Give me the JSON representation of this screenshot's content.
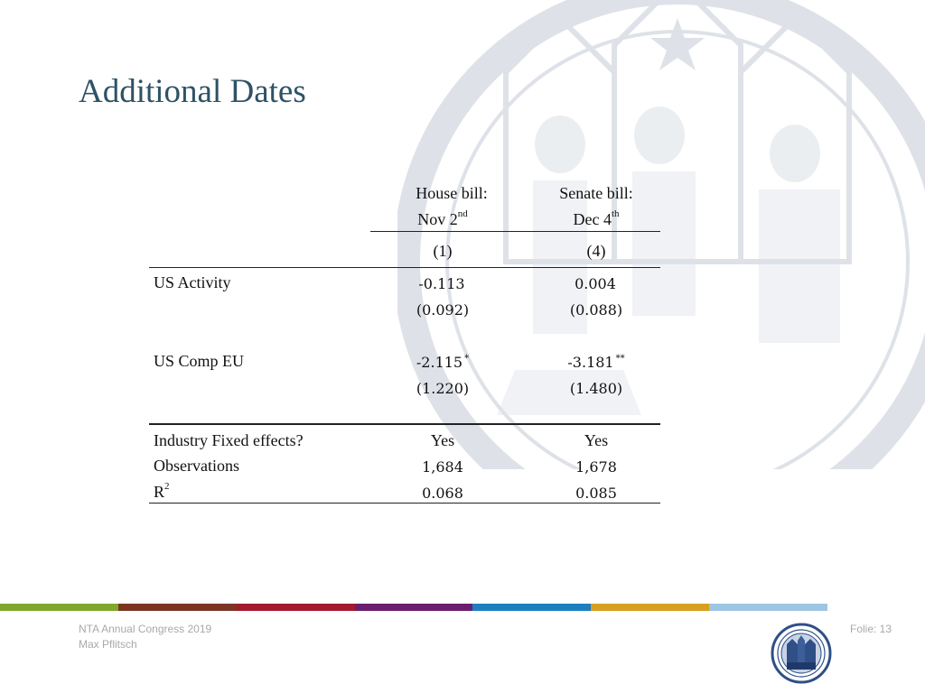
{
  "slide": {
    "title": "Additional Dates"
  },
  "table": {
    "columns": [
      {
        "line1": "House bill:",
        "line2_base": "Nov 2",
        "line2_sup": "nd",
        "number": "(1)"
      },
      {
        "line1": "Senate bill:",
        "line2_base": "Dec 4",
        "line2_sup": "th",
        "number": "(4)"
      }
    ],
    "rows": [
      {
        "label": "US Activity",
        "coef": [
          "-0.113",
          "0.004"
        ],
        "stars": [
          "",
          ""
        ],
        "se": [
          "(0.092)",
          "(0.088)"
        ]
      },
      {
        "label": "US Comp EU",
        "coef": [
          "-2.115",
          "-3.181"
        ],
        "stars": [
          "*",
          "**"
        ],
        "se": [
          "(1.220)",
          "(1.480)"
        ]
      }
    ],
    "stats": [
      {
        "label": "Industry Fixed effects?",
        "values": [
          "Yes",
          "Yes"
        ]
      },
      {
        "label": "Observations",
        "values": [
          "1,684",
          "1,678"
        ]
      },
      {
        "label_base": "R",
        "label_sup": "2",
        "values": [
          "0.068",
          "0.085"
        ]
      }
    ]
  },
  "colorbar": [
    "#7fa72b",
    "#7a3523",
    "#a4192e",
    "#6a1e6f",
    "#1d7fc0",
    "#d7a021",
    "#9cc6e3"
  ],
  "footer": {
    "event": "NTA Annual Congress 2019",
    "author": "Max Pflitsch",
    "slide_number": "Folie: 13"
  },
  "icons": {
    "watermark": "university-seal-icon",
    "logo": "university-seal-logo-icon"
  }
}
